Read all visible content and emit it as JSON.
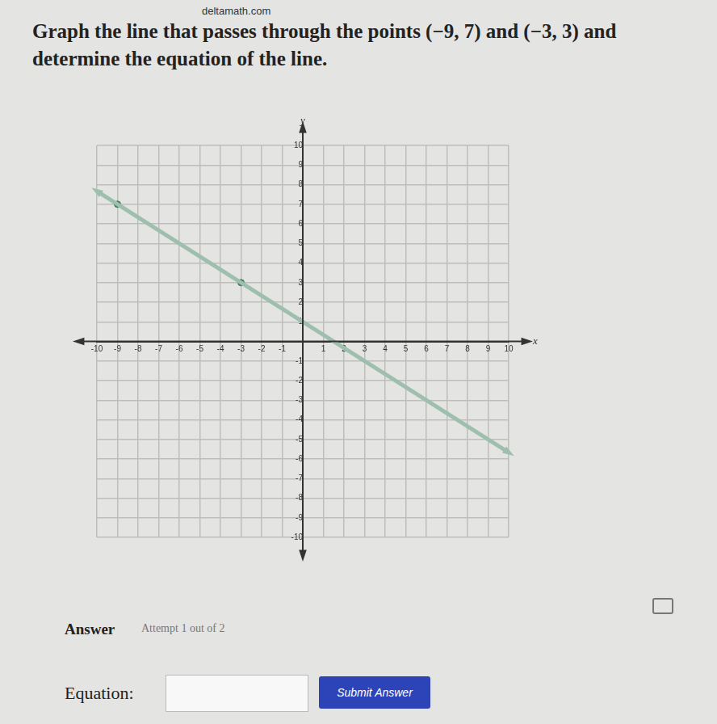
{
  "page": {
    "site": "deltamath.com",
    "question": "Graph the line that passes through the points (−9, 7) and (−3, 3) and determine the equation of the line.",
    "answer_heading": "Answer",
    "attempt": "Attempt 1 out of 2",
    "equation_label": "Equation:",
    "button": "Submit Answer"
  },
  "chart_data": {
    "type": "line",
    "x_label": "x",
    "y_label": "y",
    "xlim": [
      -10,
      10
    ],
    "ylim": [
      -10,
      10
    ],
    "xticks": [
      -10,
      -9,
      -8,
      -7,
      -6,
      -5,
      -4,
      -3,
      -2,
      -1,
      1,
      2,
      3,
      4,
      5,
      6,
      7,
      8,
      9,
      10
    ],
    "yticks": [
      -10,
      -9,
      -8,
      -7,
      -6,
      -5,
      -4,
      -3,
      -2,
      -1,
      1,
      2,
      3,
      4,
      5,
      6,
      7,
      8,
      9,
      10
    ],
    "grid": true,
    "series": [
      {
        "type": "line",
        "color": "#9fbfae",
        "marker": "arrow",
        "x": [
          -10,
          10
        ],
        "values": [
          7.67,
          -5.67
        ]
      },
      {
        "type": "scatter",
        "color": "#3f7f5c",
        "marker": "circle",
        "x": [
          -9,
          -3
        ],
        "values": [
          7,
          3
        ]
      }
    ]
  }
}
